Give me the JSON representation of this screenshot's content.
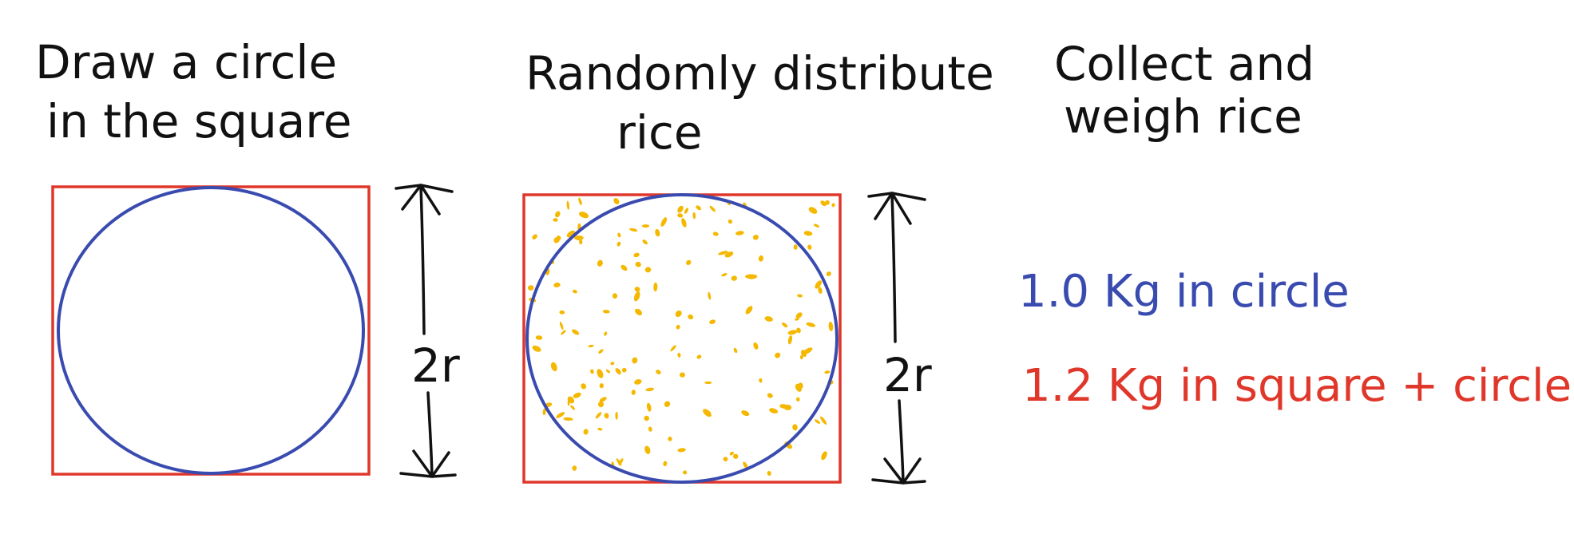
{
  "steps": [
    {
      "title_line1": "Draw a circle",
      "title_line2": "in the square",
      "dimension_label": "2r"
    },
    {
      "title_line1": "Randomly distribute",
      "title_line2": "rice",
      "dimension_label": "2r"
    },
    {
      "title_line1": "Collect and",
      "title_line2": "weigh rice"
    }
  ],
  "results": {
    "circle_label": "1.0 Kg in circle",
    "square_label": "1.2 Kg in square + circle"
  },
  "colors": {
    "square_red": "#e0372b",
    "circle_blue": "#3a4bb0",
    "rice_yellow": "#f5b800",
    "ink_black": "#111111",
    "background": "#ffffff"
  }
}
